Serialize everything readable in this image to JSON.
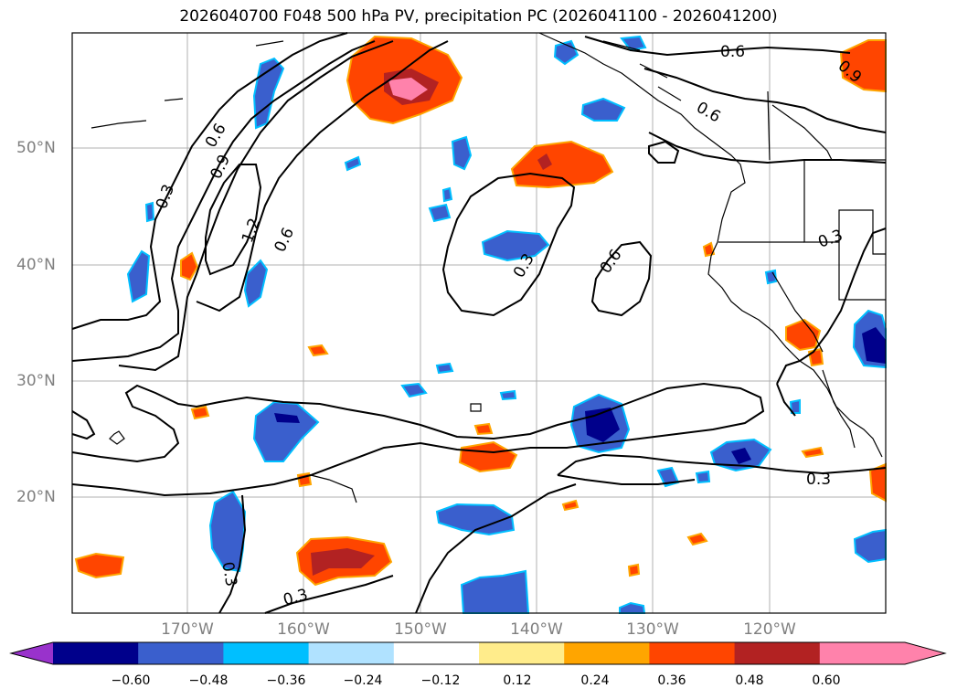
{
  "title": "2026040700 F048 500 hPa PV, precipitation PC (2026041100 - 2026041200)",
  "lat_labels": [
    "50°N",
    "40°N",
    "30°N",
    "20°N"
  ],
  "lon_labels": [
    "170°W",
    "160°W",
    "150°W",
    "140°W",
    "130°W",
    "120°W"
  ],
  "contour_labels": [
    "0.6",
    "0.9",
    "0.6",
    "0.9",
    "1.2",
    "0.3",
    "0.6",
    "0.3",
    "0.6",
    "0.3",
    "0.3",
    "0.3",
    "0.3",
    "0.6"
  ],
  "colorbar": {
    "ticks": [
      "−0.60",
      "−0.48",
      "−0.36",
      "−0.24",
      "−0.12",
      "0.12",
      "0.24",
      "0.36",
      "0.48",
      "0.60"
    ],
    "colors": [
      "#9932cc",
      "#00008b",
      "#3a5fcd",
      "#00bfff",
      "#b0e2ff",
      "#ffffff",
      "#ffec8b",
      "#ffa500",
      "#ff4500",
      "#b22222",
      "#ff82ab",
      "#ff82ab"
    ]
  }
}
